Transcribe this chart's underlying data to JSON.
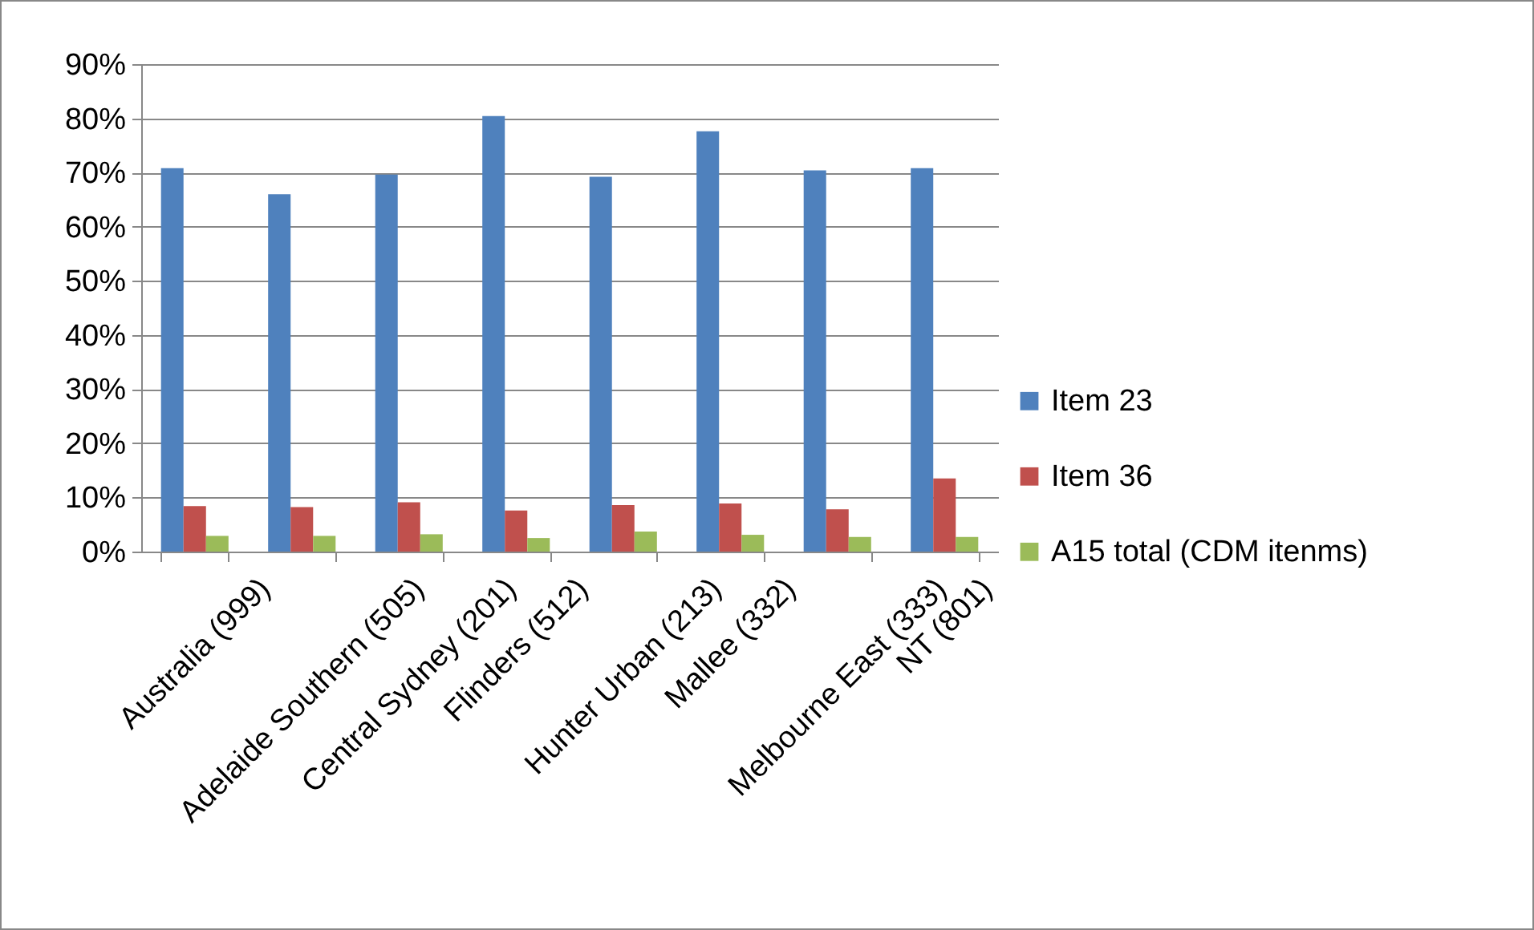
{
  "chart_data": {
    "type": "bar",
    "categories": [
      "Australia (999)",
      "Adelaide Southern (505)",
      "Central Sydney (201)",
      "Flinders (512)",
      "Hunter Urban (213)",
      "Mallee (332)",
      "Melbourne East (333)",
      "NT (801)"
    ],
    "series": [
      {
        "name": "Item 23",
        "color": "#4f81bd",
        "values": [
          70.8,
          66.0,
          69.6,
          80.4,
          69.2,
          77.6,
          70.4,
          70.8
        ]
      },
      {
        "name": "Item 36",
        "color": "#c0504d",
        "values": [
          8.4,
          8.2,
          9.1,
          7.6,
          8.6,
          8.9,
          7.8,
          13.5
        ]
      },
      {
        "name": "A15 total (CDM itenms)",
        "color": "#9bbb59",
        "values": [
          2.9,
          2.9,
          3.2,
          2.5,
          3.7,
          3.1,
          2.7,
          2.7
        ]
      }
    ],
    "ylim": [
      0,
      90
    ],
    "yticks": [
      {
        "value": 0,
        "label": "0%"
      },
      {
        "value": 10,
        "label": "10%"
      },
      {
        "value": 20,
        "label": "20%"
      },
      {
        "value": 30,
        "label": "30%"
      },
      {
        "value": 40,
        "label": "40%"
      },
      {
        "value": 50,
        "label": "50%"
      },
      {
        "value": 60,
        "label": "60%"
      },
      {
        "value": 70,
        "label": "70%"
      },
      {
        "value": 80,
        "label": "80%"
      },
      {
        "value": 90,
        "label": "90%"
      }
    ],
    "grid": "y",
    "legend": "right"
  }
}
